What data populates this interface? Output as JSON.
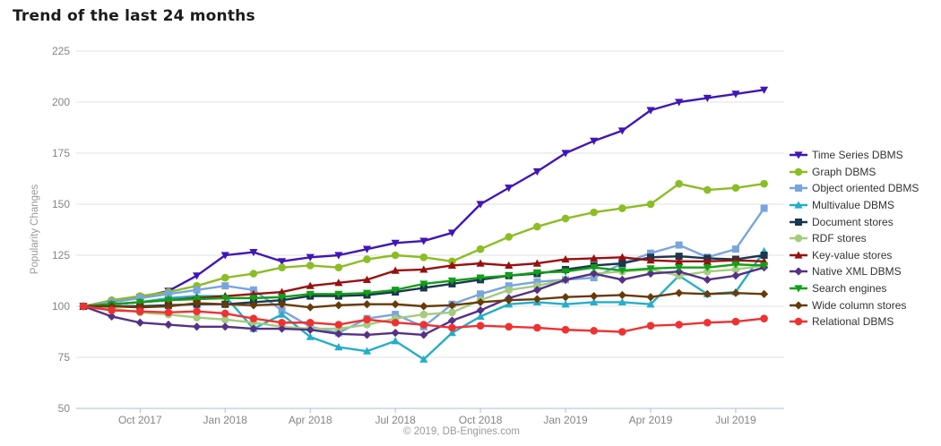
{
  "page": {
    "title": "Trend of the last 24 months",
    "copyright": "© 2019, DB-Engines.com"
  },
  "chart_data": {
    "type": "line",
    "title": "Trend of the last 24 months",
    "xlabel": "",
    "ylabel": "Popularity Changes",
    "ylim": [
      50,
      225
    ],
    "yticks": [
      225,
      200,
      175,
      150,
      125,
      100,
      75,
      50
    ],
    "grid": "horizontal-only",
    "legend_position": "right",
    "x": [
      "Aug 2017",
      "Sep 2017",
      "Oct 2017",
      "Nov 2017",
      "Dec 2017",
      "Jan 2018",
      "Feb 2018",
      "Mar 2018",
      "Apr 2018",
      "May 2018",
      "Jun 2018",
      "Jul 2018",
      "Aug 2018",
      "Sep 2018",
      "Oct 2018",
      "Nov 2018",
      "Dec 2018",
      "Jan 2019",
      "Feb 2019",
      "Mar 2019",
      "Apr 2019",
      "May 2019",
      "Jun 2019",
      "Jul 2019",
      "Aug 2019"
    ],
    "x_axis_tick_labels": [
      "Oct 2017",
      "Jan 2018",
      "Apr 2018",
      "Jul 2018",
      "Oct 2018",
      "Jan 2019",
      "Apr 2019",
      "Jul 2019"
    ],
    "x_axis_tick_indices": [
      2,
      5,
      8,
      11,
      14,
      17,
      20,
      23
    ],
    "series": [
      {
        "name": "Time Series DBMS",
        "color": "#4016b6",
        "marker": "triangle-down",
        "values": [
          100,
          102,
          104.5,
          107.5,
          115,
          125,
          126.5,
          122,
          124,
          125,
          128,
          131,
          132,
          136,
          150,
          158,
          166,
          175,
          181,
          186,
          196,
          200,
          202,
          204,
          206
        ]
      },
      {
        "name": "Graph DBMS",
        "color": "#8cbd25",
        "marker": "circle",
        "values": [
          100,
          103,
          105,
          107,
          110,
          114,
          116,
          119,
          120,
          119,
          123,
          125,
          124,
          122,
          128,
          134,
          139,
          143,
          146,
          148,
          150,
          160,
          157,
          158,
          160
        ]
      },
      {
        "name": "Object oriented DBMS",
        "color": "#7aa4de",
        "marker": "square",
        "values": [
          100,
          102,
          104,
          106,
          108,
          110,
          108,
          98,
          90,
          87,
          94,
          96,
          90,
          101,
          106,
          110,
          112,
          113,
          114,
          121,
          126,
          130,
          124,
          128,
          148
        ]
      },
      {
        "name": "Multivalue DBMS",
        "color": "#24aec8",
        "marker": "triangle-up",
        "values": [
          100,
          101,
          102,
          104,
          105,
          105,
          89,
          96,
          85,
          80,
          78,
          83,
          74,
          87,
          95,
          101,
          102,
          101,
          102,
          102,
          101,
          115,
          106,
          107,
          127
        ]
      },
      {
        "name": "Document stores",
        "color": "#1b374e",
        "marker": "square",
        "values": [
          100,
          100,
          100,
          100.5,
          101,
          101,
          102,
          103,
          105,
          105,
          105.5,
          107,
          109,
          111,
          113,
          115,
          116,
          118,
          120,
          121,
          124,
          124.5,
          123.5,
          123,
          125
        ]
      },
      {
        "name": "RDF stores",
        "color": "#a3cc7e",
        "marker": "circle",
        "values": [
          100,
          99,
          97,
          96,
          94.5,
          93.5,
          92,
          90,
          89,
          89,
          91,
          94,
          96,
          97,
          103,
          108,
          110,
          113,
          116,
          117,
          118,
          115,
          117,
          118,
          120
        ]
      },
      {
        "name": "Key-value stores",
        "color": "#991010",
        "marker": "triangle-up",
        "values": [
          100,
          101,
          102,
          103,
          104,
          105,
          106,
          107,
          110,
          111.5,
          113,
          117.5,
          118,
          120,
          121,
          120,
          121,
          123,
          123.5,
          124,
          122.5,
          122,
          122,
          122.5,
          122
        ]
      },
      {
        "name": "Native XML DBMS",
        "color": "#543186",
        "marker": "diamond",
        "values": [
          100,
          95,
          92,
          91,
          90,
          90,
          89,
          89,
          88.5,
          86.5,
          86,
          87,
          86,
          93,
          98,
          104,
          108,
          113,
          116,
          113,
          116,
          117,
          113,
          115,
          119
        ]
      },
      {
        "name": "Search engines",
        "color": "#10a016",
        "marker": "triangle-down",
        "values": [
          100,
          101,
          102,
          103,
          103.5,
          104,
          104,
          104.5,
          106,
          106,
          106.5,
          108,
          111,
          112.5,
          114,
          115,
          116.5,
          117,
          119,
          117.5,
          118.5,
          119,
          119,
          120.5,
          120
        ]
      },
      {
        "name": "Wide column stores",
        "color": "#683b0a",
        "marker": "diamond",
        "values": [
          100,
          100,
          99.5,
          100,
          101.5,
          101,
          100.5,
          101,
          99.5,
          100.5,
          101,
          101,
          100,
          100.5,
          102,
          103,
          103.5,
          104.5,
          105,
          105.5,
          104.5,
          106.5,
          106,
          106.5,
          106
        ]
      },
      {
        "name": "Relational DBMS",
        "color": "#f03131",
        "marker": "circle",
        "values": [
          100,
          98,
          97.5,
          97,
          97.5,
          96.5,
          94,
          92,
          92,
          91,
          93.5,
          92,
          91,
          89.5,
          90.5,
          90,
          89.5,
          88.5,
          88,
          87.5,
          90.5,
          91,
          92,
          92.5,
          94
        ]
      }
    ],
    "style": {
      "grid_color": "#e0e0e0",
      "axis_color": "#a9bfd4",
      "tick_label_color": "#858585",
      "axis_title_color": "#999999",
      "legend_text_color": "#333333",
      "title_color": "#1b1b1b",
      "copyright_color": "#9a9a9a"
    }
  }
}
